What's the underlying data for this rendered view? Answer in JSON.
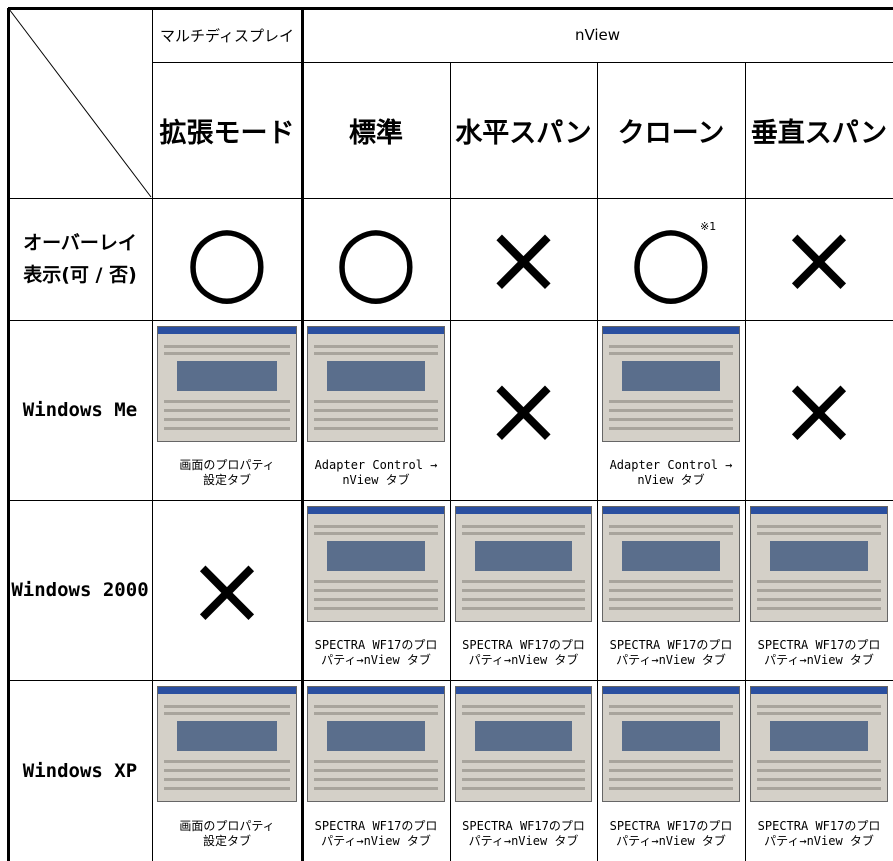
{
  "table": {
    "header": [
      "マルチディスプレイ",
      "nView"
    ],
    "modes": [
      "拡張モード",
      "標準",
      "水平スパン",
      "クローン",
      "垂直スパン"
    ],
    "rows": [
      {
        "label": [
          "オーバーレイ",
          "表示(可 / 否)"
        ],
        "cells": [
          {
            "symbol": "○"
          },
          {
            "symbol": "○"
          },
          {
            "symbol": "×"
          },
          {
            "symbol": "○",
            "note": "※1"
          },
          {
            "symbol": "×"
          }
        ]
      },
      {
        "label": [
          "Windows Me"
        ],
        "cells": [
          {
            "caption": [
              "画面のプロパティ",
              "設定タブ"
            ]
          },
          {
            "caption": [
              "Adapter Control →",
              "nView タブ"
            ]
          },
          {
            "symbol": "×"
          },
          {
            "caption": [
              "Adapter Control →",
              "nView タブ"
            ]
          },
          {
            "symbol": "×"
          }
        ]
      },
      {
        "label": [
          "Windows 2000"
        ],
        "cells": [
          {
            "symbol": "×"
          },
          {
            "caption": [
              "SPECTRA WF17のプロ",
              "パティ→nView タブ"
            ]
          },
          {
            "caption": [
              "SPECTRA WF17のプロ",
              "パティ→nView タブ"
            ]
          },
          {
            "caption": [
              "SPECTRA WF17のプロ",
              "パティ→nView タブ"
            ]
          },
          {
            "caption": [
              "SPECTRA WF17のプロ",
              "パティ→nView タブ"
            ]
          }
        ]
      },
      {
        "label": [
          "Windows XP"
        ],
        "cells": [
          {
            "caption": [
              "画面のプロパティ",
              "設定タブ"
            ]
          },
          {
            "caption": [
              "SPECTRA WF17のプロ",
              "パティ→nView タブ"
            ]
          },
          {
            "caption": [
              "SPECTRA WF17のプロ",
              "パティ→nView タブ"
            ]
          },
          {
            "caption": [
              "SPECTRA WF17のプロ",
              "パティ→nView タブ"
            ]
          },
          {
            "caption": [
              "SPECTRA WF17のプロ",
              "パティ→nView タブ"
            ]
          }
        ]
      }
    ]
  }
}
